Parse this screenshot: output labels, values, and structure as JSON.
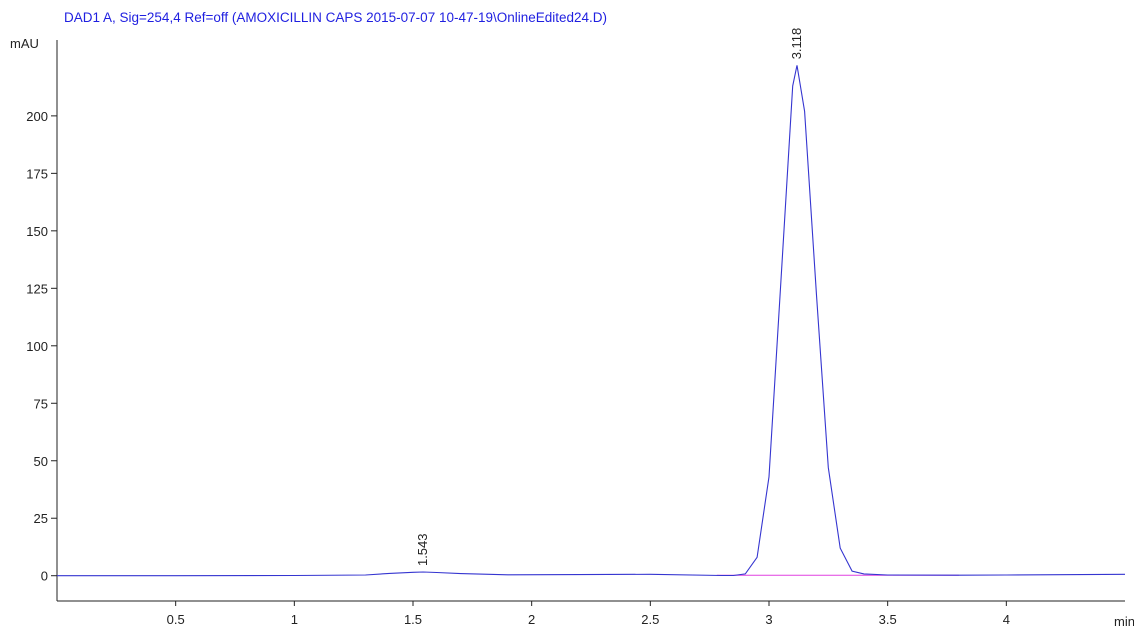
{
  "chart_data": {
    "type": "line",
    "title": "DAD1 A, Sig=254,4 Ref=off (AMOXICILLIN CAPS 2015-07-07 10-47-19\\OnlineEdited24.D)",
    "y_label": "mAU",
    "x_label": "min",
    "x": [
      0,
      0.5,
      1.0,
      1.3,
      1.4,
      1.5,
      1.543,
      1.6,
      1.7,
      1.9,
      2.2,
      2.5,
      2.8,
      2.85,
      2.9,
      2.95,
      3.0,
      3.05,
      3.1,
      3.118,
      3.15,
      3.2,
      3.25,
      3.3,
      3.35,
      3.4,
      3.5,
      3.8,
      4.0,
      4.5
    ],
    "series": [
      {
        "color": "#3535d0",
        "values": [
          0,
          0,
          0.1,
          0.3,
          1,
          1.5,
          1.6,
          1.4,
          0.9,
          0.4,
          0.5,
          0.6,
          0.1,
          0.1,
          0.8,
          8,
          43,
          128,
          213,
          222,
          202,
          122,
          47,
          12,
          2,
          0.8,
          0.3,
          0.2,
          0.3,
          0.6
        ]
      }
    ],
    "baseline": {
      "color": "#e040e0",
      "x": [
        2.78,
        3.8
      ],
      "values": [
        0.2,
        0.2
      ]
    },
    "annotations": [
      {
        "x": 1.543,
        "text": "1.543"
      },
      {
        "x": 3.118,
        "text": "3.118"
      }
    ],
    "xlim": [
      0,
      4.5
    ],
    "ylim": [
      -11,
      233
    ],
    "xticks": [
      0.5,
      1,
      1.5,
      2,
      2.5,
      3,
      3.5,
      4
    ],
    "yticks": [
      0,
      25,
      50,
      75,
      100,
      125,
      150,
      175,
      200
    ]
  }
}
